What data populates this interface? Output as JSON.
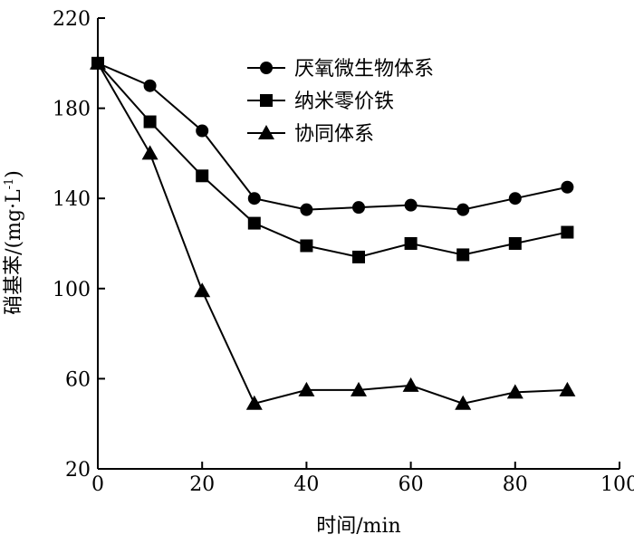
{
  "chart_data": {
    "type": "line",
    "title": "",
    "xlabel": "时间/min",
    "ylabel_main": "硝基苯/(mg·L",
    "ylabel_sup": "-1",
    "ylabel_close": ")",
    "xlim": [
      0,
      100
    ],
    "ylim": [
      20,
      220
    ],
    "xticks": [
      0,
      20,
      40,
      60,
      80,
      100
    ],
    "yticks": [
      20,
      60,
      100,
      140,
      180,
      220
    ],
    "grid": false,
    "legend_position": "top-right",
    "x": [
      0,
      10,
      20,
      30,
      40,
      50,
      60,
      70,
      80,
      90
    ],
    "series": [
      {
        "name": "厌氧微生物体系",
        "marker": "circle",
        "values": [
          200,
          190,
          170,
          140,
          135,
          136,
          137,
          135,
          140,
          145
        ]
      },
      {
        "name": "纳米零价铁",
        "marker": "square",
        "values": [
          200,
          174,
          150,
          129,
          119,
          114,
          120,
          115,
          120,
          125
        ]
      },
      {
        "name": "协同体系",
        "marker": "triangle",
        "values": [
          200,
          160,
          99,
          49,
          55,
          55,
          57,
          49,
          54,
          55
        ]
      }
    ]
  }
}
